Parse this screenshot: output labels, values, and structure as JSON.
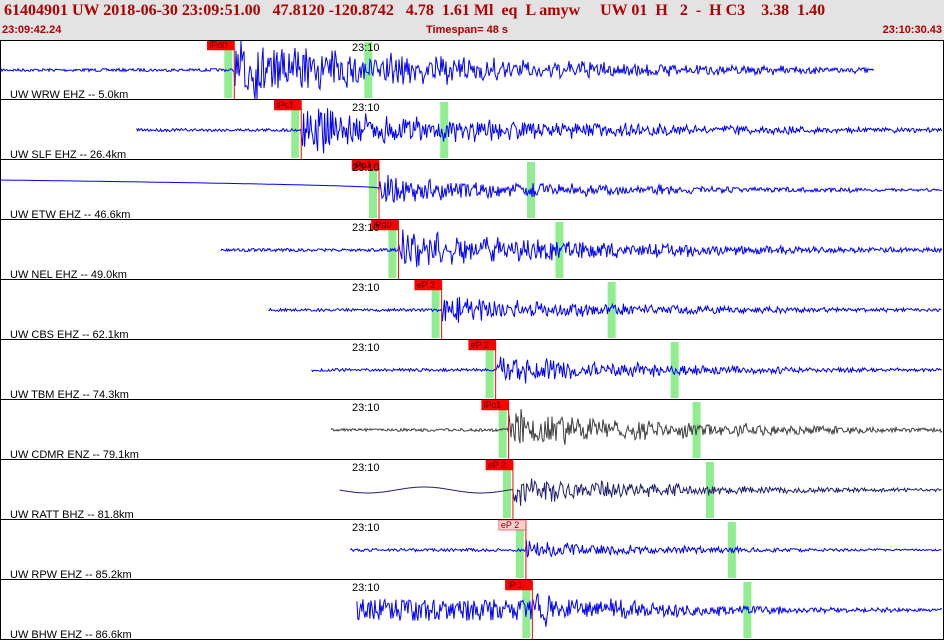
{
  "header": {
    "summary": "61404901 UW 2018-06-30 23:09:51.00   47.8120 -120.8742   4.78  1.61 Ml  eq  L amyw     UW 01  H   2  -  H C3    3.38  1.40",
    "start_time": "23:09:42.24",
    "timespan": "Timespan=  48 s",
    "end_time": "23:10:30.43"
  },
  "colors": {
    "trace": "#0000ff",
    "trace_dark": "#404040",
    "trace_navy": "#202070",
    "pick_box": "#ff0000",
    "pick_line": "#ff0000",
    "green_window": "#90ee90",
    "header_text": "#b00000",
    "header_bg": "#e3e3e3"
  },
  "chart_data": {
    "type": "line",
    "title": "61404901 UW 2018-06-30 23:09:51.00",
    "x_range_time": [
      "23:09:42.24",
      "23:10:30.43"
    ],
    "minute_tick_label": "23:10",
    "traces": [
      {
        "label": "UW WRW EHZ -- 5.0km",
        "pick": "iPd0",
        "pick_time_s": 10.8,
        "color": "trace",
        "start_s": 0.0,
        "end_s": 38.6,
        "amp": "clipped"
      },
      {
        "label": "UW SLF EHZ -- 26.4km",
        "pick": "iPc1",
        "pick_time_s": 13.9,
        "color": "trace",
        "start_s": 3.5,
        "end_s": 42.0,
        "amp": "high"
      },
      {
        "label": "UW ETW EHZ -- 46.6km",
        "pick": "iPc1",
        "pick_time_s": 17.5,
        "color": "trace",
        "start_s": 0.0,
        "end_s": 45.6,
        "amp": "medium"
      },
      {
        "label": "UW NEL EHZ -- 49.0km",
        "pick": "iPd0",
        "pick_time_s": 18.4,
        "color": "trace",
        "start_s": 7.4,
        "end_s": 46.0,
        "amp": "high"
      },
      {
        "label": "UW CBS EHZ -- 62.1km",
        "pick": "eP 2",
        "pick_time_s": 20.4,
        "color": "trace",
        "start_s": 9.6,
        "end_s": 48.0,
        "amp": "medium"
      },
      {
        "label": "UW TBM EHZ -- 74.3km",
        "pick": "eP 2",
        "pick_time_s": 22.9,
        "color": "trace",
        "start_s": 11.6,
        "end_s": 50.3,
        "amp": "medium"
      },
      {
        "label": "UW CDMR ENZ -- 79.1km",
        "pick": "iPc1",
        "pick_time_s": 23.5,
        "color": "trace_dark",
        "start_s": 12.5,
        "end_s": 51.0,
        "amp": "high"
      },
      {
        "label": "UW RATT BHZ -- 81.8km",
        "pick": "eP 2",
        "pick_time_s": 23.7,
        "color": "trace_navy",
        "start_s": 12.9,
        "end_s": 51.4,
        "amp": "medium"
      },
      {
        "label": "UW RPW EHZ -- 85.2km",
        "pick": "eP 2",
        "pick_time_s": 24.3,
        "color": "trace",
        "start_s": 13.4,
        "end_s": 52.0,
        "amp": "low"
      },
      {
        "label": "UW BHW EHZ -- 86.6km",
        "pick": "iP 1",
        "pick_time_s": 24.6,
        "color": "trace",
        "start_s": 13.7,
        "end_s": 52.4,
        "amp": "noisy"
      }
    ]
  }
}
